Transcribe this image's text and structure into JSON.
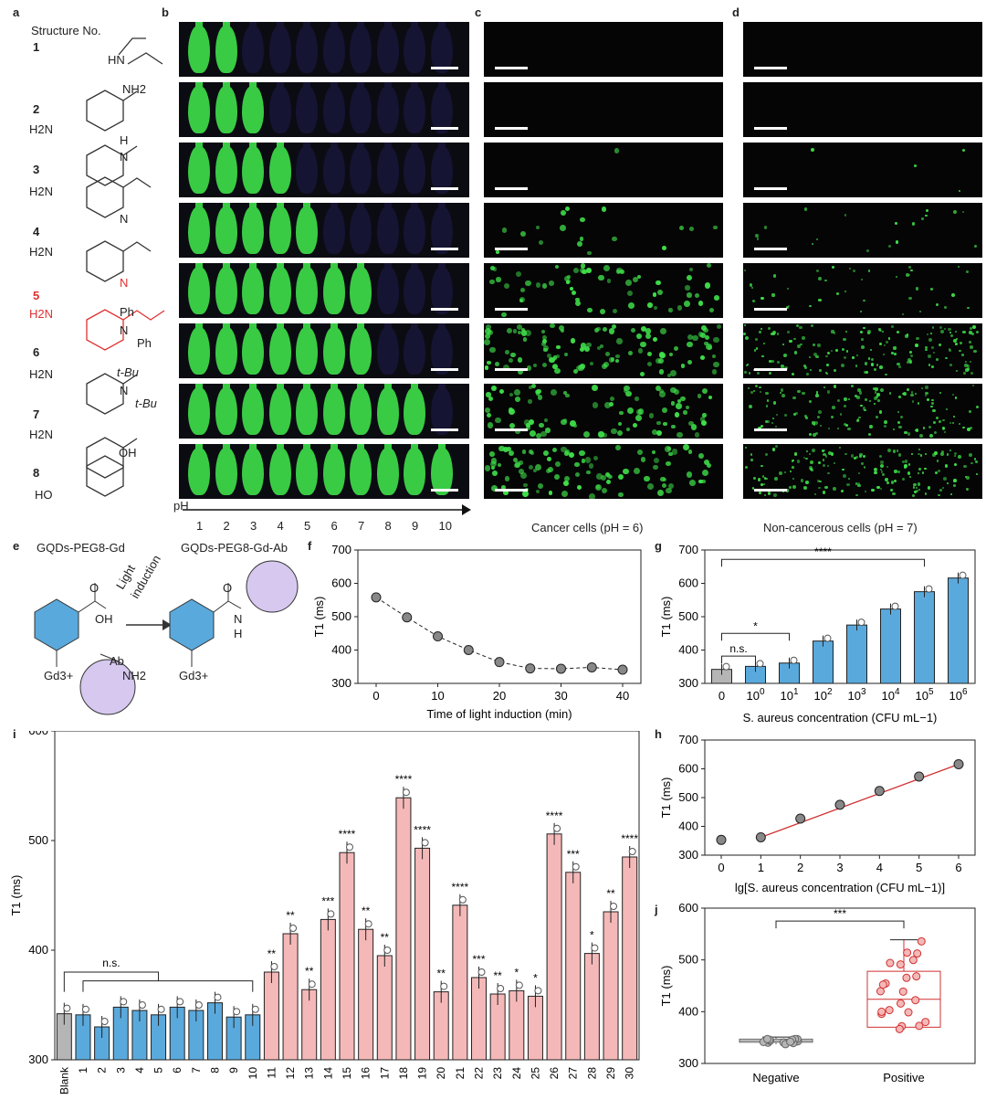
{
  "panels": {
    "a": "a",
    "b": "b",
    "c": "c",
    "d": "d",
    "e": "e",
    "f": "f",
    "g": "g",
    "h": "h",
    "i": "i",
    "j": "j"
  },
  "structures": {
    "header": "Structure No.",
    "items": [
      {
        "no": "1",
        "top": "",
        "mid": "",
        "bottom": "",
        "subs": [
          "HN"
        ]
      },
      {
        "no": "2",
        "subs": [
          "NH2",
          "H2N"
        ]
      },
      {
        "no": "3",
        "subs": [
          "H",
          "N",
          "H2N"
        ]
      },
      {
        "no": "4",
        "subs": [
          "N",
          "H2N"
        ]
      },
      {
        "no": "5",
        "subs": [
          "N",
          "H2N"
        ]
      },
      {
        "no": "6",
        "subs": [
          "Ph",
          "N",
          "Ph",
          "H2N"
        ]
      },
      {
        "no": "7",
        "subs": [
          "t-Bu",
          "N",
          "t-Bu",
          "H2N"
        ]
      },
      {
        "no": "8",
        "subs": [
          "OH",
          "HO"
        ]
      }
    ]
  },
  "ph_axis": {
    "label": "pH",
    "ticks": [
      "1",
      "2",
      "3",
      "4",
      "5",
      "6",
      "7",
      "8",
      "9",
      "10"
    ]
  },
  "captions": {
    "cancer": "Cancer cells (pH = 6)",
    "noncancer": "Non-cancerous cells (pH = 7)"
  },
  "scheme_e": {
    "left_title": "GQDs-PEG8-Gd",
    "right_title": "GQDs-PEG8-Gd-Ab",
    "arrow_label_1": "Light",
    "arrow_label_2": "induction",
    "ab": "Ab",
    "nh2": "NH2",
    "gd": "Gd3+",
    "oh": "OH",
    "o": "O",
    "h": "H",
    "n": "N"
  },
  "colors": {
    "blue": "#5aa9dc",
    "pink": "#f5b8b8",
    "gray": "#b5b5b5",
    "red": "#d03030",
    "green": "#3fe04a"
  },
  "chart_data": [
    {
      "id": "f",
      "type": "line",
      "xlabel": "Time of light induction (min)",
      "ylabel": "T1 (ms)",
      "xlim": [
        0,
        40
      ],
      "ylim": [
        300,
        700
      ],
      "xticks": [
        "0",
        "10",
        "20",
        "30",
        "40"
      ],
      "yticks": [
        "300",
        "400",
        "500",
        "600",
        "700"
      ],
      "x": [
        0,
        5,
        10,
        15,
        20,
        25,
        30,
        35,
        40
      ],
      "y": [
        558,
        498,
        441,
        400,
        364,
        345,
        344,
        348,
        341
      ]
    },
    {
      "id": "g",
      "type": "bar",
      "xlabel": "S. aureus concentration (CFU mL−1)",
      "ylabel": "T1 (ms)",
      "ylim": [
        300,
        700
      ],
      "yticks": [
        "300",
        "400",
        "500",
        "600",
        "700"
      ],
      "categories": [
        "0",
        "10^0",
        "10^1",
        "10^2",
        "10^3",
        "10^4",
        "10^5",
        "10^6"
      ],
      "values": [
        342,
        351,
        361,
        427,
        475,
        523,
        575,
        616
      ],
      "significance": [
        "n.s.",
        "*",
        "****"
      ]
    },
    {
      "id": "h",
      "type": "scatter",
      "xlabel": "lg[S. aureus concentration (CFU mL−1)]",
      "ylabel": "T1 (ms)",
      "xlim": [
        0,
        6
      ],
      "ylim": [
        300,
        700
      ],
      "xticks": [
        "0",
        "1",
        "2",
        "3",
        "4",
        "5",
        "6"
      ],
      "yticks": [
        "300",
        "400",
        "500",
        "600",
        "700"
      ],
      "x": [
        0,
        1,
        2,
        3,
        4,
        5,
        6
      ],
      "y": [
        353,
        362,
        427,
        475,
        523,
        573,
        616
      ],
      "fit": {
        "x0": 1,
        "y0": 362,
        "x1": 6,
        "y1": 616
      }
    },
    {
      "id": "i",
      "type": "bar",
      "ylabel": "T1 (ms)",
      "ylim": [
        300,
        600
      ],
      "yticks": [
        "300",
        "400",
        "500",
        "600"
      ],
      "categories": [
        "Blank",
        "1",
        "2",
        "3",
        "4",
        "5",
        "6",
        "7",
        "8",
        "9",
        "10",
        "11",
        "12",
        "13",
        "14",
        "15",
        "16",
        "17",
        "18",
        "19",
        "20",
        "21",
        "22",
        "23",
        "24",
        "25",
        "26",
        "27",
        "28",
        "29",
        "30"
      ],
      "values": [
        342,
        341,
        330,
        348,
        345,
        341,
        348,
        345,
        352,
        339,
        341,
        380,
        415,
        364,
        428,
        489,
        419,
        395,
        539,
        493,
        362,
        441,
        375,
        360,
        363,
        358,
        506,
        471,
        397,
        435,
        485
      ],
      "stars": [
        "",
        "",
        "",
        "",
        "",
        "",
        "",
        "",
        "",
        "",
        "",
        "**",
        "**",
        "**",
        "***",
        "****",
        "**",
        "**",
        "****",
        "****",
        "**",
        "****",
        "***",
        "**",
        "*",
        "*",
        "****",
        "***",
        "*",
        "**",
        "****"
      ],
      "ns_label": "n.s."
    },
    {
      "id": "j",
      "type": "box",
      "ylabel": "T1 (ms)",
      "ylim": [
        300,
        600
      ],
      "yticks": [
        "300",
        "400",
        "500",
        "600"
      ],
      "categories": [
        "Negative",
        "Positive"
      ],
      "negative": {
        "min": 337,
        "q1": 341,
        "median": 344,
        "q3": 347,
        "max": 351
      },
      "positive": {
        "min": 365,
        "q1": 370,
        "median": 424,
        "q3": 478,
        "max": 539
      },
      "significance": "***"
    }
  ]
}
